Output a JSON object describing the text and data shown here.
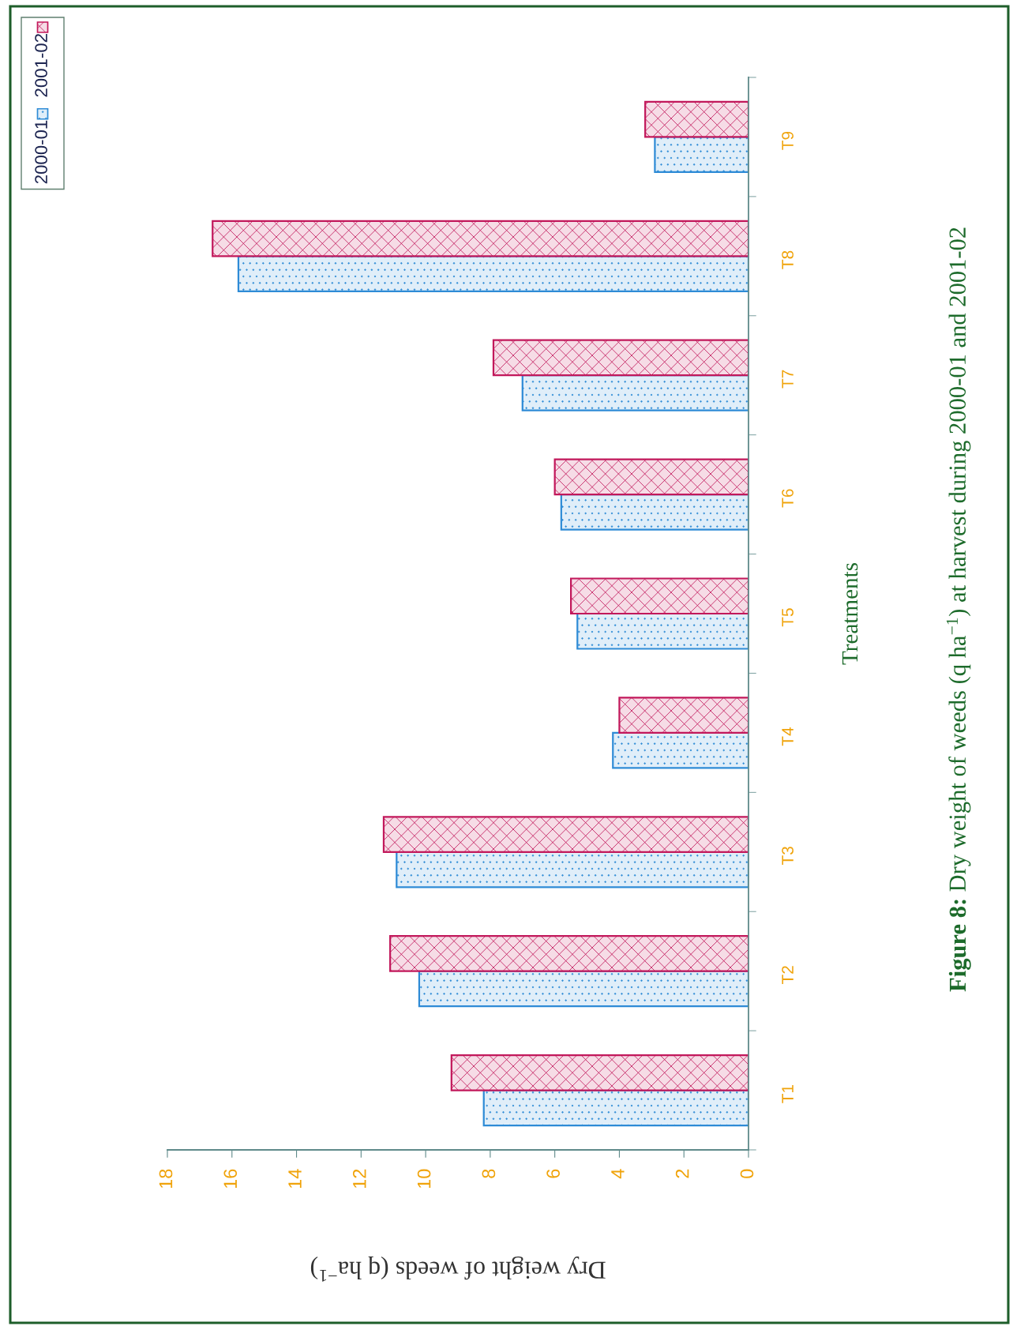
{
  "chart_data": {
    "type": "bar",
    "orientation": "horizontal",
    "title": "Figure 8: Dry weight of weeds (q ha$^{−1}$) at harvest during 2000-01 and 2001-02",
    "xlabel": "Dry weight of weeds (q ha$^{−1}$)",
    "ylabel": "Treatments",
    "categories": [
      "T9",
      "T8",
      "T7",
      "T6",
      "T5",
      "T4",
      "T3",
      "T2",
      "T1"
    ],
    "series": [
      {
        "name": "2000-01",
        "color": "#2e8bd6",
        "values": [
          2.9,
          15.8,
          7.0,
          5.8,
          5.3,
          4.2,
          10.9,
          10.2,
          8.2
        ]
      },
      {
        "name": "2001-02",
        "color": "#c2185b",
        "values": [
          3.2,
          16.6,
          7.9,
          6.0,
          5.5,
          4.0,
          11.3,
          11.1,
          9.2
        ]
      }
    ],
    "xlim": [
      18,
      0
    ],
    "xticks": [
      0,
      2,
      4,
      6,
      8,
      10,
      12,
      14,
      16,
      18
    ],
    "legend": "top left"
  }
}
